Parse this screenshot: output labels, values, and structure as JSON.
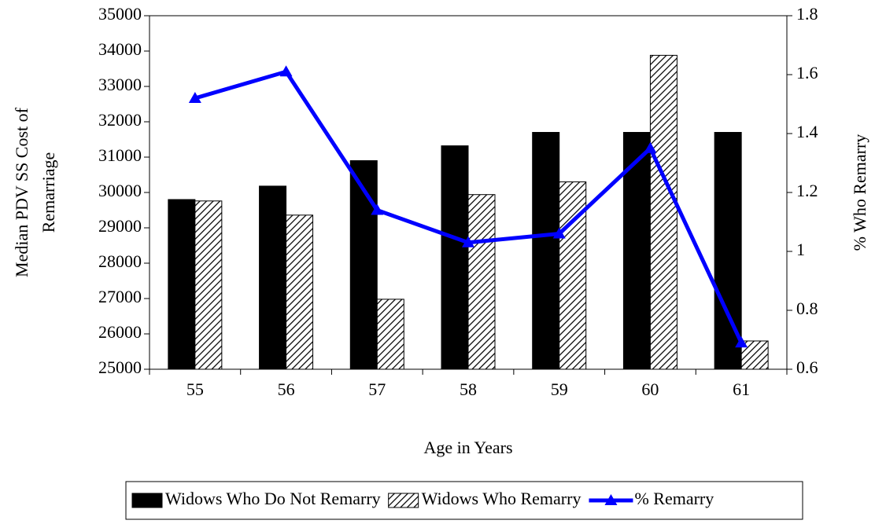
{
  "chart_data": {
    "type": "bar_line",
    "xlabel": "Age in Years",
    "ylabel": [
      "Median PDV SS Cost of",
      "Remarriage"
    ],
    "y2label": "% Who Remarry",
    "categories": [
      "55",
      "56",
      "57",
      "58",
      "59",
      "60",
      "61"
    ],
    "series": [
      {
        "name": "Widows Who Do Not Remarry",
        "type": "bar",
        "color": "#000000",
        "values": [
          29800,
          30180,
          30900,
          31320,
          31700,
          31700,
          31700
        ]
      },
      {
        "name": "Widows Who Remarry",
        "type": "bar",
        "color": "hatch",
        "values": [
          29760,
          29360,
          26980,
          29940,
          30300,
          33880,
          25800
        ]
      },
      {
        "name": "% Remarry",
        "type": "line",
        "axis": "y2",
        "color": "#0000ff",
        "values": [
          1.52,
          1.61,
          1.14,
          1.03,
          1.06,
          1.35,
          0.69
        ]
      }
    ],
    "ylim": [
      25000,
      35000
    ],
    "yticks": [
      25000,
      26000,
      27000,
      28000,
      29000,
      30000,
      31000,
      32000,
      33000,
      34000,
      35000
    ],
    "y2lim": [
      0.6,
      1.8
    ],
    "y2ticks": [
      0.6,
      0.8,
      1,
      1.2,
      1.4,
      1.6,
      1.8
    ],
    "legend": "bottom"
  }
}
